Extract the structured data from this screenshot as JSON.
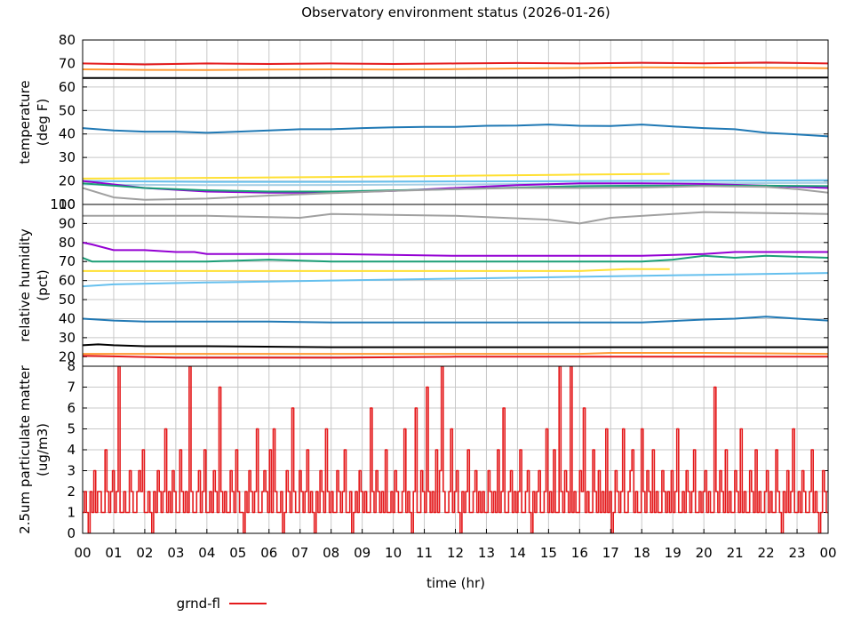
{
  "chart_data": {
    "title": "Observatory environment status (2026-01-26)",
    "xlabel": "time (hr)",
    "x_ticks": [
      "00",
      "01",
      "02",
      "03",
      "04",
      "05",
      "06",
      "07",
      "08",
      "09",
      "10",
      "11",
      "12",
      "13",
      "14",
      "15",
      "16",
      "17",
      "18",
      "19",
      "20",
      "21",
      "22",
      "23",
      "00"
    ],
    "xlim": [
      0,
      24
    ],
    "grid": true,
    "legend": {
      "position": "bottom-left",
      "entries": [
        {
          "name": "grnd-fl",
          "color": "#e41a1c"
        }
      ]
    },
    "panels": [
      {
        "id": "temperature",
        "type": "line",
        "ylabel": [
          "temperature",
          "(deg F)"
        ],
        "ylim": [
          10,
          80
        ],
        "y_ticks": [
          80,
          70,
          60,
          50,
          40,
          30,
          20,
          10
        ],
        "series": [
          {
            "color": "#e41a1c",
            "x": [
              0,
              2,
              4,
              6,
              8,
              10,
              12,
              14,
              16,
              18,
              20,
              22,
              24
            ],
            "y": [
              70,
              69.6,
              70,
              69.8,
              70,
              69.8,
              70,
              70.2,
              70,
              70.3,
              70.1,
              70.4,
              70
            ]
          },
          {
            "color": "#ff9933",
            "x": [
              0,
              2,
              4,
              6,
              8,
              10,
              12,
              14,
              16,
              18,
              20,
              22,
              24
            ],
            "y": [
              67.5,
              67.3,
              67.2,
              67.4,
              67.5,
              67.4,
              67.6,
              67.9,
              68.1,
              68.4,
              68.3,
              68.2,
              68
            ]
          },
          {
            "color": "#000000",
            "x": [
              0,
              4,
              8,
              12,
              16,
              20,
              24
            ],
            "y": [
              63.8,
              63.8,
              63.9,
              63.9,
              64,
              64,
              64
            ]
          },
          {
            "color": "#1f78b4",
            "x": [
              0,
              1,
              2,
              3,
              4,
              5,
              6,
              7,
              8,
              9,
              10,
              11,
              12,
              13,
              14,
              15,
              16,
              17,
              18,
              19,
              20,
              21,
              22,
              23,
              24
            ],
            "y": [
              42.5,
              41.5,
              41,
              41,
              40.5,
              41,
              41.5,
              42,
              42,
              42.5,
              42.8,
              43,
              43,
              43.5,
              43.6,
              44,
              43.5,
              43.4,
              44,
              43.2,
              42.5,
              42,
              40.5,
              39.8,
              39
            ]
          },
          {
            "color": "#ffe033",
            "x": [
              0,
              4,
              8,
              12,
              16,
              18.9
            ],
            "y": [
              21,
              21.3,
              21.7,
              22.2,
              22.7,
              23
            ]
          },
          {
            "color": "#66c0ee",
            "x": [
              0,
              4,
              8,
              12,
              16,
              20,
              24
            ],
            "y": [
              20,
              19.6,
              19.6,
              19.8,
              19.9,
              20.1,
              20.3
            ]
          },
          {
            "color": "#a6cee3",
            "x": [
              0,
              4,
              8,
              12,
              16,
              20,
              24
            ],
            "y": [
              18.5,
              18.2,
              18.3,
              18.5,
              18.8,
              19,
              19.2
            ]
          },
          {
            "color": "#9400d3",
            "x": [
              0,
              2,
              4,
              6,
              8,
              10,
              12,
              14,
              16,
              18,
              20,
              22,
              24
            ],
            "y": [
              20,
              17,
              15.5,
              15,
              15,
              15.8,
              17,
              18.2,
              19,
              19,
              18.7,
              18,
              17
            ]
          },
          {
            "color": "#1b9e77",
            "x": [
              0,
              2,
              4,
              6,
              8,
              10,
              12,
              14,
              16,
              18,
              20,
              22,
              24
            ],
            "y": [
              19,
              17,
              16,
              15.5,
              15.5,
              16,
              16.5,
              17.2,
              17.8,
              18,
              18,
              18,
              17.8
            ]
          },
          {
            "color": "#a0a0a0",
            "x": [
              0,
              1,
              2,
              4,
              6,
              8,
              10,
              12,
              14,
              16,
              18,
              20,
              22,
              23,
              24
            ],
            "y": [
              17,
              13,
              12,
              12.5,
              13.8,
              14.8,
              15.8,
              16.5,
              17,
              17,
              17.2,
              17.8,
              17.5,
              16.5,
              15
            ]
          }
        ]
      },
      {
        "id": "humidity",
        "type": "line",
        "ylabel": [
          "relative humidity",
          "(pct)"
        ],
        "ylim": [
          15,
          100
        ],
        "y_ticks": [
          100,
          90,
          80,
          70,
          60,
          50,
          40,
          30,
          20
        ],
        "series": [
          {
            "color": "#a0a0a0",
            "x": [
              0,
              4,
              7,
              8,
              12,
              15,
              16,
              17,
              20,
              24
            ],
            "y": [
              94,
              94,
              93,
              95,
              94,
              92,
              90,
              93,
              96,
              95
            ]
          },
          {
            "color": "#9400d3",
            "x": [
              0,
              0.3,
              1,
              2,
              3,
              3.6,
              4,
              8,
              12,
              16,
              17,
              18,
              20,
              21,
              24
            ],
            "y": [
              80,
              79,
              76,
              76,
              75,
              75,
              74,
              74,
              73,
              73,
              73,
              73,
              74,
              75,
              75
            ]
          },
          {
            "color": "#1b9e77",
            "x": [
              0,
              0.3,
              2,
              4,
              6,
              8,
              12,
              16,
              18,
              19,
              20,
              21,
              22,
              24
            ],
            "y": [
              72,
              70,
              70,
              70,
              71,
              70,
              70,
              70,
              70,
              71,
              73,
              72,
              73,
              72
            ]
          },
          {
            "color": "#ffe033",
            "x": [
              0,
              4,
              8,
              12,
              16,
              17.5,
              18.9
            ],
            "y": [
              65,
              65,
              65,
              65,
              65,
              66,
              66
            ]
          },
          {
            "color": "#66c0ee",
            "x": [
              0,
              1,
              4,
              8,
              12,
              16,
              20,
              24
            ],
            "y": [
              57,
              58,
              59,
              60,
              61,
              62,
              63,
              64
            ]
          },
          {
            "color": "#1f78b4",
            "x": [
              0,
              1,
              2,
              4,
              6,
              8,
              10,
              12,
              14,
              16,
              18,
              20,
              21,
              22,
              23,
              24
            ],
            "y": [
              40,
              39,
              38.5,
              38.5,
              38.5,
              38,
              38,
              38,
              38,
              38,
              38,
              39.5,
              40,
              41,
              40,
              39
            ]
          },
          {
            "color": "#000000",
            "x": [
              0,
              0.5,
              1,
              2,
              4,
              8,
              12,
              16,
              20,
              24
            ],
            "y": [
              26,
              26.5,
              26,
              25.5,
              25.5,
              25,
              25,
              25,
              25,
              25
            ]
          },
          {
            "color": "#ff9933",
            "x": [
              0,
              4,
              8,
              12,
              16,
              17,
              18,
              20,
              24
            ],
            "y": [
              21.5,
              21.5,
              21.5,
              21.5,
              21.5,
              22,
              22,
              22,
              21.5
            ]
          },
          {
            "color": "#e41a1c",
            "x": [
              0,
              3,
              4,
              6,
              8,
              12,
              16,
              20,
              24
            ],
            "y": [
              20.5,
              19.5,
              19.5,
              19.5,
              19.5,
              20,
              20,
              20,
              20
            ]
          }
        ]
      },
      {
        "id": "particulate",
        "type": "line",
        "ylabel": [
          "2.5um particulate matter",
          "(ug/m3)"
        ],
        "ylim": [
          0,
          8
        ],
        "y_ticks": [
          8,
          7,
          6,
          5,
          4,
          3,
          2,
          1,
          0
        ],
        "series": [
          {
            "name": "grnd-fl",
            "color": "#e41a1c",
            "values": [
              1,
              2,
              1,
              0,
              2,
              1,
              3,
              1,
              2,
              2,
              1,
              1,
              4,
              2,
              1,
              2,
              3,
              1,
              2,
              8,
              1,
              1,
              2,
              1,
              1,
              3,
              2,
              1,
              1,
              2,
              3,
              2,
              4,
              1,
              1,
              2,
              1,
              0,
              2,
              1,
              3,
              2,
              1,
              2,
              5,
              1,
              2,
              1,
              3,
              2,
              1,
              1,
              4,
              2,
              1,
              2,
              1,
              8,
              2,
              1,
              1,
              2,
              3,
              1,
              2,
              4,
              1,
              1,
              2,
              1,
              3,
              2,
              1,
              7,
              2,
              1,
              2,
              1,
              1,
              3,
              2,
              1,
              4,
              2,
              1,
              1,
              0,
              2,
              1,
              3,
              2,
              1,
              2,
              5,
              1,
              1,
              2,
              3,
              2,
              1,
              4,
              1,
              5,
              2,
              1,
              1,
              2,
              0,
              1,
              3,
              2,
              1,
              6,
              2,
              1,
              1,
              3,
              2,
              1,
              2,
              4,
              1,
              2,
              1,
              0,
              2,
              1,
              3,
              2,
              1,
              5,
              2,
              1,
              2,
              1,
              1,
              3,
              2,
              1,
              2,
              4,
              1,
              1,
              2,
              0,
              1,
              2,
              1,
              3,
              2,
              1,
              2,
              1,
              1,
              6,
              2,
              1,
              3,
              2,
              1,
              2,
              1,
              4,
              1,
              1,
              2,
              1,
              3,
              2,
              1,
              1,
              2,
              5,
              1,
              2,
              1,
              0,
              2,
              6,
              1,
              1,
              3,
              2,
              1,
              7,
              2,
              1,
              2,
              1,
              4,
              1,
              3,
              8,
              2,
              1,
              1,
              2,
              5,
              1,
              2,
              3,
              1,
              0,
              2,
              1,
              2,
              4,
              1,
              1,
              2,
              3,
              1,
              2,
              1,
              2,
              1,
              1,
              3,
              2,
              1,
              2,
              1,
              4,
              1,
              2,
              6,
              1,
              1,
              2,
              3,
              1,
              2,
              1,
              2,
              4,
              1,
              1,
              2,
              3,
              1,
              0,
              2,
              1,
              2,
              3,
              1,
              1,
              2,
              5,
              1,
              2,
              1,
              4,
              1,
              1,
              8,
              2,
              1,
              3,
              2,
              1,
              8,
              1,
              2,
              1,
              1,
              3,
              2,
              6,
              1,
              2,
              1,
              1,
              4,
              2,
              1,
              3,
              1,
              2,
              1,
              5,
              1,
              2,
              0,
              1,
              3,
              2,
              1,
              2,
              5,
              1,
              1,
              2,
              3,
              4,
              1,
              2,
              1,
              1,
              5,
              2,
              1,
              3,
              2,
              1,
              4,
              1,
              2,
              1,
              1,
              3,
              2,
              1,
              2,
              1,
              3,
              1,
              2,
              5,
              1,
              1,
              2,
              1,
              3,
              2,
              1,
              2,
              4,
              1,
              1,
              2,
              1,
              2,
              3,
              1,
              2,
              1,
              1,
              7,
              2,
              1,
              3,
              2,
              1,
              4,
              1,
              2,
              1,
              1,
              3,
              2,
              1,
              5,
              1,
              2,
              1,
              1,
              3,
              2,
              1,
              4,
              1,
              2,
              1,
              1,
              2,
              3,
              1,
              2,
              1,
              1,
              4,
              2,
              1,
              0,
              2,
              1,
              3,
              1,
              2,
              5,
              1,
              1,
              2,
              1,
              3,
              2,
              1,
              1,
              2,
              4,
              1,
              2,
              1,
              0,
              1,
              3,
              2,
              1
            ]
          }
        ]
      }
    ]
  }
}
